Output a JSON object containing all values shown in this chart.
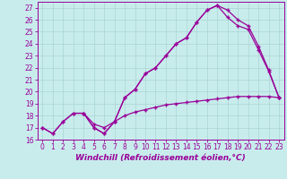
{
  "background_color": "#c8ecec",
  "grid_color": "#aad4d4",
  "line_color": "#990099",
  "marker": "+",
  "xlim": [
    -0.5,
    23.5
  ],
  "ylim": [
    16,
    27.5
  ],
  "yticks": [
    16,
    17,
    18,
    19,
    20,
    21,
    22,
    23,
    24,
    25,
    26,
    27
  ],
  "xticks": [
    0,
    1,
    2,
    3,
    4,
    5,
    6,
    7,
    8,
    9,
    10,
    11,
    12,
    13,
    14,
    15,
    16,
    17,
    18,
    19,
    20,
    21,
    22,
    23
  ],
  "xlabel": "Windchill (Refroidissement éolien,°C)",
  "curve1_x": [
    0,
    1,
    2,
    3,
    4,
    5,
    6,
    7,
    8,
    9,
    10,
    11,
    12,
    13,
    14,
    15,
    16,
    17,
    18,
    19,
    20,
    21,
    22,
    23
  ],
  "curve1_y": [
    17.0,
    16.5,
    17.5,
    18.2,
    18.2,
    17.0,
    16.5,
    17.5,
    19.5,
    20.2,
    21.5,
    22.0,
    23.0,
    24.0,
    24.5,
    25.8,
    26.8,
    27.2,
    26.2,
    25.5,
    25.2,
    23.5,
    21.7,
    19.5
  ],
  "curve2_x": [
    4,
    5,
    6,
    7,
    8,
    9,
    10,
    11,
    12,
    13,
    14,
    15,
    16,
    17,
    18,
    19,
    20,
    21,
    22,
    23
  ],
  "curve2_y": [
    18.2,
    17.0,
    16.5,
    17.5,
    19.5,
    20.2,
    21.5,
    22.0,
    23.0,
    24.0,
    24.5,
    25.8,
    26.8,
    27.2,
    26.8,
    26.0,
    25.5,
    23.8,
    21.8,
    19.5
  ],
  "curve3_x": [
    0,
    1,
    2,
    3,
    4,
    5,
    6,
    7,
    8,
    9,
    10,
    11,
    12,
    13,
    14,
    15,
    16,
    17,
    18,
    19,
    20,
    21,
    22,
    23
  ],
  "curve3_y": [
    17.0,
    16.5,
    17.5,
    18.2,
    18.2,
    17.3,
    17.0,
    17.5,
    18.0,
    18.3,
    18.5,
    18.7,
    18.9,
    19.0,
    19.1,
    19.2,
    19.3,
    19.4,
    19.5,
    19.6,
    19.6,
    19.6,
    19.6,
    19.5
  ],
  "tick_fontsize": 5.5,
  "label_fontsize": 6.5
}
